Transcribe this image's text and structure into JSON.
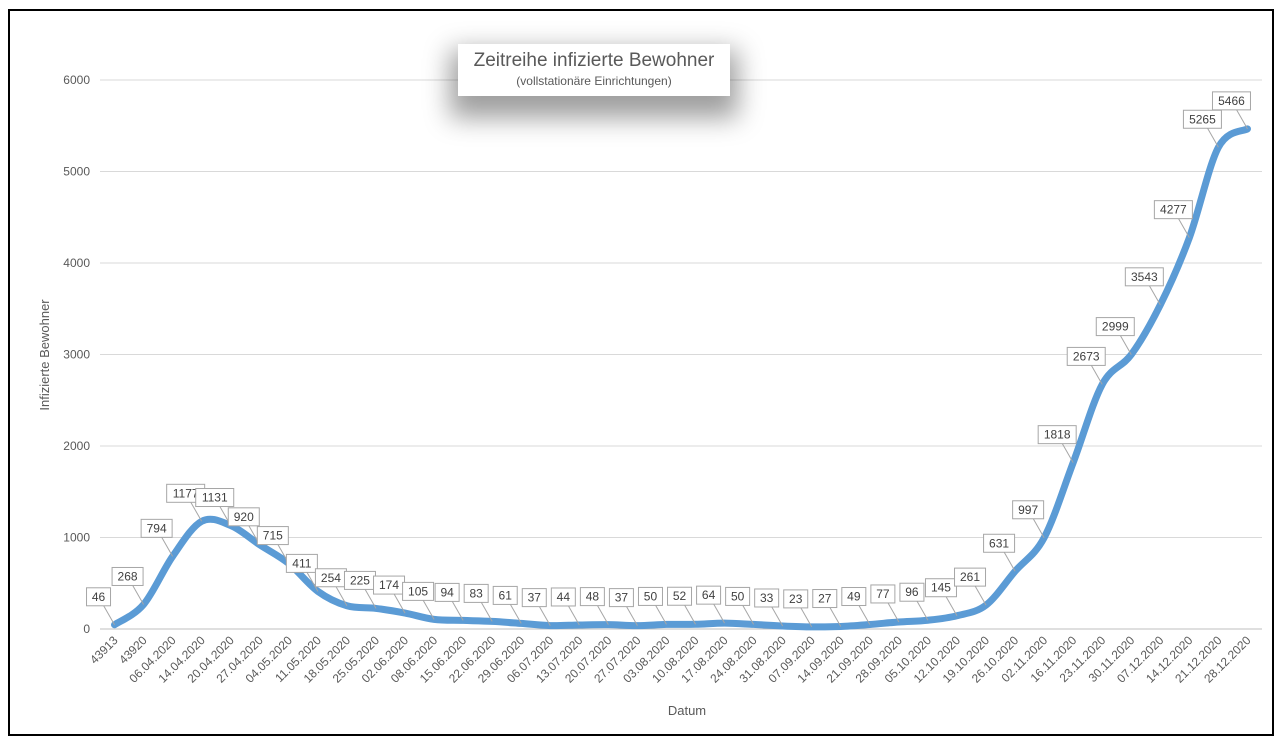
{
  "chart_data": {
    "type": "line",
    "title": "Zeitreihe infizierte Bewohner",
    "subtitle": "(vollstationäre Einrichtungen)",
    "xlabel": "Datum",
    "ylabel": "Infizierte Bewohner",
    "ylim": [
      0,
      6000
    ],
    "yticks": [
      0,
      1000,
      2000,
      3000,
      4000,
      5000,
      6000
    ],
    "grid": true,
    "legend": "none",
    "color": "#5B9BD5",
    "categories": [
      "43913",
      "43920",
      "06.04.2020",
      "14.04.2020",
      "20.04.2020",
      "27.04.2020",
      "04.05.2020",
      "11.05.2020",
      "18.05.2020",
      "25.05.2020",
      "02.06.2020",
      "08.06.2020",
      "15.06.2020",
      "22.06.2020",
      "29.06.2020",
      "06.07.2020",
      "13.07.2020",
      "20.07.2020",
      "27.07.2020",
      "03.08.2020",
      "10.08.2020",
      "17.08.2020",
      "24.08.2020",
      "31.08.2020",
      "07.09.2020",
      "14.09.2020",
      "21.09.2020",
      "28.09.2020",
      "05.10.2020",
      "12.10.2020",
      "19.10.2020",
      "26.10.2020",
      "02.11.2020",
      "16.11.2020",
      "23.11.2020",
      "30.11.2020",
      "07.12.2020",
      "14.12.2020",
      "21.12.2020",
      "28.12.2020"
    ],
    "values": [
      46,
      268,
      794,
      1177,
      1131,
      920,
      715,
      411,
      254,
      225,
      174,
      105,
      94,
      83,
      61,
      37,
      44,
      48,
      37,
      50,
      52,
      64,
      50,
      33,
      23,
      27,
      49,
      77,
      96,
      145,
      261,
      631,
      997,
      1818,
      2673,
      2999,
      3543,
      4277,
      5265,
      5466
    ]
  }
}
